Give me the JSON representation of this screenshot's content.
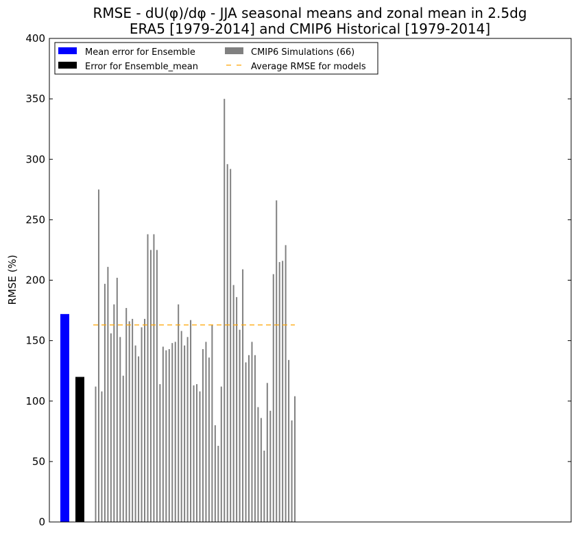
{
  "chart_data": {
    "type": "bar",
    "title": "RMSE - dU(φ)/dφ - JJA seasonal means and zonal mean in 2.5dg",
    "subtitle": "ERA5 [1979-2014] and CMIP6 Historical [1979-2014]",
    "xlabel": "",
    "ylabel": "RMSE (%)",
    "ylim": [
      0,
      400
    ],
    "yticks": [
      0,
      50,
      100,
      150,
      200,
      250,
      300,
      350,
      400
    ],
    "grid": false,
    "legend_placement": "top-left",
    "legend": [
      {
        "label": "Mean error for Ensemble",
        "color": "#0000ff",
        "kind": "bar"
      },
      {
        "label": "Error for Ensemble_mean",
        "color": "#000000",
        "kind": "bar"
      },
      {
        "label": "CMIP6 Simulations (66)",
        "color": "#808080",
        "kind": "bar"
      },
      {
        "label": "Average RMSE for models",
        "color": "#ffa500",
        "kind": "dashed-line"
      }
    ],
    "ensemble_mean_error": 172,
    "ensemble_mean_of_error": 120,
    "average_rmse_models": 163,
    "simulations": [
      112,
      275,
      108,
      197,
      211,
      156,
      180,
      202,
      153,
      121,
      177,
      166,
      168,
      146,
      137,
      161,
      168,
      238,
      225,
      238,
      225,
      114,
      145,
      142,
      143,
      148,
      149,
      180,
      158,
      146,
      153,
      167,
      113,
      114,
      108,
      143,
      149,
      136,
      163,
      80,
      63,
      112,
      350,
      296,
      292,
      196,
      186,
      159,
      209,
      132,
      138,
      149,
      138,
      95,
      86,
      59,
      115,
      92,
      205,
      266,
      215,
      216,
      229,
      134,
      84,
      104
    ]
  }
}
